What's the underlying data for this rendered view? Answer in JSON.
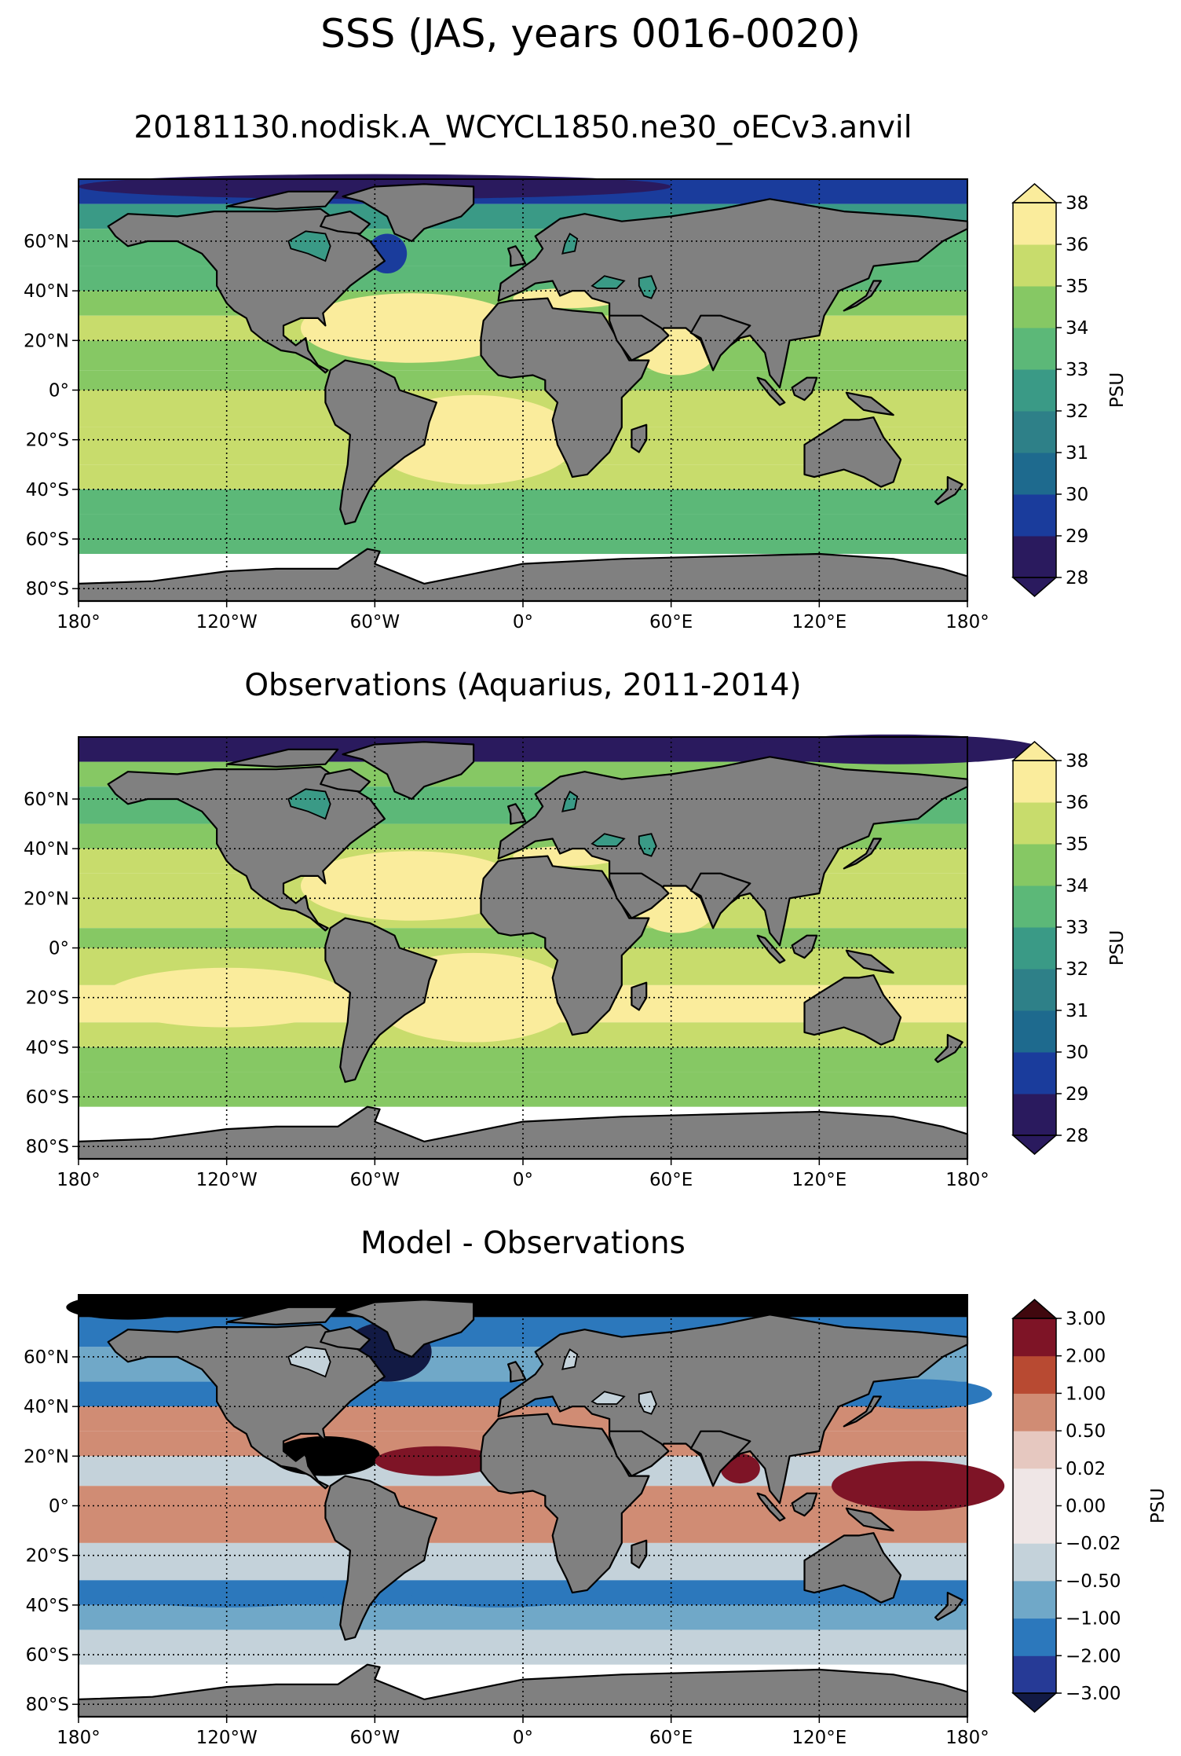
{
  "figure_title": "SSS (JAS, years 0016-0020)",
  "colors": {
    "land": "#808080",
    "no_data": "#ffffff",
    "sss_levels": [
      "#2a1a5e",
      "#1a3c9c",
      "#1e6a8e",
      "#2e8088",
      "#3a9a86",
      "#5cb878",
      "#86c864",
      "#c8dc6c",
      "#faec9c"
    ],
    "diff_levels": [
      "#263a96",
      "#2c78bc",
      "#70a8c8",
      "#c4d2da",
      "#efe6e6",
      "#e6c8c0",
      "#d08c74",
      "#b84a32",
      "#7e1426"
    ],
    "diff_under": "#121a44",
    "diff_over": "#40080e"
  },
  "chart_data": [
    {
      "type": "map",
      "panel": "model",
      "title": "20181130.nodisk.A_WCYCL1850.ne30_oECv3.anvil",
      "lon_ticks": [
        "180°",
        "120°W",
        "60°W",
        "0°",
        "60°E",
        "120°E",
        "180°"
      ],
      "lat_ticks": [
        "80°S",
        "60°S",
        "40°S",
        "20°S",
        "0°",
        "20°N",
        "40°N",
        "60°N"
      ],
      "colorbar": {
        "label": "PSU",
        "tick_labels": [
          "28",
          "29",
          "30",
          "31",
          "32",
          "33",
          "34",
          "35",
          "36",
          "38"
        ],
        "extend": "both"
      },
      "field": {
        "zonal_bands_psu": [
          {
            "lat_from": 85,
            "lat_to": 75,
            "value": 29
          },
          {
            "lat_from": 75,
            "lat_to": 65,
            "value": 32
          },
          {
            "lat_from": 65,
            "lat_to": 50,
            "value": 33
          },
          {
            "lat_from": 50,
            "lat_to": 40,
            "value": 33
          },
          {
            "lat_from": 40,
            "lat_to": 30,
            "value": 34
          },
          {
            "lat_from": 30,
            "lat_to": 20,
            "value": 35
          },
          {
            "lat_from": 20,
            "lat_to": 8,
            "value": 34
          },
          {
            "lat_from": 8,
            "lat_to": 0,
            "value": 34
          },
          {
            "lat_from": 0,
            "lat_to": -15,
            "value": 35
          },
          {
            "lat_from": -15,
            "lat_to": -30,
            "value": 35
          },
          {
            "lat_from": -30,
            "lat_to": -40,
            "value": 35
          },
          {
            "lat_from": -40,
            "lat_to": -50,
            "value": 33
          },
          {
            "lat_from": -50,
            "lat_to": -66,
            "value": 33
          }
        ],
        "high_salinity_areas": [
          {
            "region": "Subtropical North Atlantic",
            "value": 36
          },
          {
            "region": "Subtropical South Atlantic",
            "value": 36
          },
          {
            "region": "Mediterranean",
            "value": 36
          },
          {
            "region": "Arabian Sea",
            "value": 36
          }
        ],
        "low_salinity_areas": [
          {
            "region": "Arctic / Hudson Bay",
            "value": 28
          },
          {
            "region": "Labrador coast",
            "value": 29
          },
          {
            "region": "Baltic",
            "value": 30
          }
        ]
      }
    },
    {
      "type": "map",
      "panel": "observations",
      "title": "Observations (Aquarius, 2011-2014)",
      "lon_ticks": [
        "180°",
        "120°W",
        "60°W",
        "0°",
        "60°E",
        "120°E",
        "180°"
      ],
      "lat_ticks": [
        "80°S",
        "60°S",
        "40°S",
        "20°S",
        "0°",
        "20°N",
        "40°N",
        "60°N"
      ],
      "colorbar": {
        "label": "PSU",
        "tick_labels": [
          "28",
          "29",
          "30",
          "31",
          "32",
          "33",
          "34",
          "35",
          "36",
          "38"
        ],
        "extend": "both"
      },
      "field": {
        "coverage_lat_range": [
          -64,
          84
        ],
        "zonal_bands_psu": [
          {
            "lat_from": 85,
            "lat_to": 75,
            "value": 28
          },
          {
            "lat_from": 75,
            "lat_to": 65,
            "value": 34
          },
          {
            "lat_from": 65,
            "lat_to": 50,
            "value": 33
          },
          {
            "lat_from": 50,
            "lat_to": 40,
            "value": 34
          },
          {
            "lat_from": 40,
            "lat_to": 30,
            "value": 35
          },
          {
            "lat_from": 30,
            "lat_to": 20,
            "value": 35
          },
          {
            "lat_from": 20,
            "lat_to": 8,
            "value": 35
          },
          {
            "lat_from": 8,
            "lat_to": 0,
            "value": 34
          },
          {
            "lat_from": 0,
            "lat_to": -15,
            "value": 35
          },
          {
            "lat_from": -15,
            "lat_to": -30,
            "value": 36
          },
          {
            "lat_from": -30,
            "lat_to": -40,
            "value": 35
          },
          {
            "lat_from": -40,
            "lat_to": -50,
            "value": 34
          },
          {
            "lat_from": -50,
            "lat_to": -64,
            "value": 34
          }
        ],
        "high_salinity_areas": [
          {
            "region": "Subtropical North Atlantic",
            "value": 36
          },
          {
            "region": "Subtropical South Atlantic",
            "value": 36
          },
          {
            "region": "Mediterranean",
            "value": 36
          },
          {
            "region": "Arabian Sea",
            "value": 36
          },
          {
            "region": "South Pacific gyre",
            "value": 36
          }
        ],
        "low_salinity_areas": [
          {
            "region": "Arctic",
            "value": 28
          },
          {
            "region": "Hudson Bay",
            "value": 29
          }
        ]
      }
    },
    {
      "type": "map",
      "panel": "difference",
      "title": "Model - Observations",
      "lon_ticks": [
        "180°",
        "120°W",
        "60°W",
        "0°",
        "60°E",
        "120°E",
        "180°"
      ],
      "lat_ticks": [
        "80°S",
        "60°S",
        "40°S",
        "20°S",
        "0°",
        "20°N",
        "40°N",
        "60°N"
      ],
      "colorbar": {
        "label": "PSU",
        "tick_labels": [
          "−3.00",
          "−2.00",
          "−1.00",
          "−0.50",
          "−0.02",
          "0.00",
          "0.02",
          "0.50",
          "1.00",
          "2.00",
          "3.00"
        ],
        "extend": "both"
      },
      "field": {
        "coverage_lat_range": [
          -64,
          84
        ],
        "zonal_bands_psu": [
          {
            "lat_from": 85,
            "lat_to": 76,
            "value": 2.5
          },
          {
            "lat_from": 76,
            "lat_to": 64,
            "value": -1.5
          },
          {
            "lat_from": 64,
            "lat_to": 50,
            "value": -0.7
          },
          {
            "lat_from": 50,
            "lat_to": 40,
            "value": -1.5
          },
          {
            "lat_from": 40,
            "lat_to": 30,
            "value": 0.3
          },
          {
            "lat_from": 30,
            "lat_to": 20,
            "value": 0.3
          },
          {
            "lat_from": 20,
            "lat_to": 8,
            "value": -0.3
          },
          {
            "lat_from": 8,
            "lat_to": 0,
            "value": 0.3
          },
          {
            "lat_from": 0,
            "lat_to": -15,
            "value": 0.3
          },
          {
            "lat_from": -15,
            "lat_to": -30,
            "value": -0.3
          },
          {
            "lat_from": -30,
            "lat_to": -40,
            "value": -1.5
          },
          {
            "lat_from": -40,
            "lat_to": -50,
            "value": -0.7
          },
          {
            "lat_from": -50,
            "lat_to": -64,
            "value": -0.3
          }
        ],
        "positive_bias_areas": [
          {
            "region": "Caribbean / Gulf of Mexico",
            "value": 2.5
          },
          {
            "region": "Tropical North Atlantic",
            "value": 1.5
          },
          {
            "region": "Western tropical Pacific",
            "value": 1.5
          },
          {
            "region": "Bay of Bengal",
            "value": 1.5
          },
          {
            "region": "Arctic shelf",
            "value": 2.5
          }
        ],
        "negative_bias_areas": [
          {
            "region": "Labrador Sea / Baffin Bay",
            "value": -3.5
          },
          {
            "region": "Western North Pacific",
            "value": -1.5
          },
          {
            "region": "South Atlantic",
            "value": -1.5
          },
          {
            "region": "South Pacific",
            "value": -1.5
          }
        ]
      }
    }
  ]
}
